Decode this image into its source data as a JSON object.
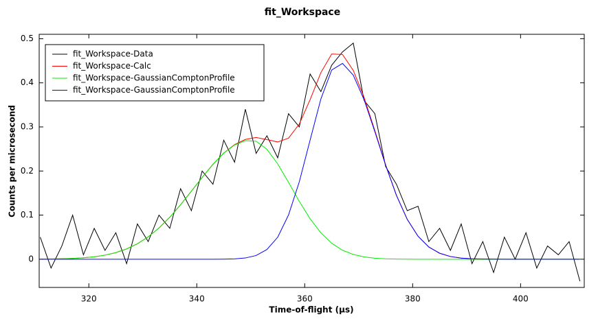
{
  "chart_data": {
    "type": "line",
    "title": "fit_Workspace",
    "x_label": "Time-of-flight (μs)",
    "y_label": "Counts per microsecond",
    "x": [
      311,
      313,
      315,
      317,
      319,
      321,
      323,
      325,
      327,
      329,
      331,
      333,
      335,
      337,
      339,
      341,
      343,
      345,
      347,
      349,
      351,
      353,
      355,
      357,
      359,
      361,
      363,
      365,
      367,
      369,
      371,
      373,
      375,
      377,
      379,
      381,
      383,
      385,
      387,
      389,
      391,
      393,
      395,
      397,
      399,
      401,
      403,
      405,
      407,
      409,
      411
    ],
    "series": [
      {
        "name": "fit_Workspace-Data",
        "color": "#000000",
        "values": [
          0.05,
          -0.02,
          0.03,
          0.1,
          0.01,
          0.07,
          0.02,
          0.06,
          -0.01,
          0.08,
          0.04,
          0.1,
          0.07,
          0.16,
          0.11,
          0.2,
          0.17,
          0.27,
          0.22,
          0.34,
          0.24,
          0.28,
          0.23,
          0.33,
          0.3,
          0.42,
          0.38,
          0.44,
          0.47,
          0.49,
          0.36,
          0.33,
          0.21,
          0.17,
          0.11,
          0.12,
          0.04,
          0.07,
          0.02,
          0.08,
          -0.01,
          0.04,
          -0.03,
          0.05,
          0.0,
          0.06,
          -0.02,
          0.03,
          0.01,
          0.04,
          -0.05
        ]
      },
      {
        "name": "fit_Workspace-Calc",
        "color": "#ff0000",
        "values": [
          0.0002,
          0.0005,
          0.0009,
          0.0018,
          0.0032,
          0.0055,
          0.0092,
          0.015,
          0.0233,
          0.0351,
          0.0508,
          0.0708,
          0.0952,
          0.1235,
          0.1542,
          0.1856,
          0.2152,
          0.2407,
          0.2598,
          0.2716,
          0.276,
          0.2712,
          0.2659,
          0.2746,
          0.3066,
          0.3617,
          0.4232,
          0.4652,
          0.4644,
          0.4282,
          0.3671,
          0.2916,
          0.2139,
          0.1449,
          0.0904,
          0.0521,
          0.0276,
          0.0136,
          0.0061,
          0.0025,
          0.001,
          0.0004,
          0.0001,
          0,
          0,
          0,
          0,
          0,
          0,
          0,
          0
        ]
      },
      {
        "name": "fit_Workspace-GaussianComptonProfile",
        "color": "#00ee00",
        "values": [
          0.0002,
          0.0005,
          0.0009,
          0.0018,
          0.0032,
          0.0055,
          0.0092,
          0.015,
          0.0233,
          0.0351,
          0.0508,
          0.0708,
          0.0952,
          0.1235,
          0.1542,
          0.1856,
          0.2152,
          0.2405,
          0.259,
          0.2688,
          0.2676,
          0.2492,
          0.216,
          0.1743,
          0.131,
          0.0917,
          0.0597,
          0.0362,
          0.0204,
          0.0108,
          0.0053,
          0.0024,
          0.001,
          0.0004,
          0.0001,
          0,
          0,
          0,
          0,
          0,
          0,
          0,
          0,
          0,
          0,
          0,
          0,
          0,
          0,
          0,
          0
        ]
      },
      {
        "name": "fit_Workspace-GaussianComptonProfile",
        "color": "#0000ff",
        "values": [
          0,
          0,
          0,
          0,
          0,
          0,
          0,
          0,
          0,
          0,
          0,
          0,
          0,
          0,
          0,
          0,
          0,
          0.0002,
          0.0008,
          0.0028,
          0.0084,
          0.022,
          0.0499,
          0.1003,
          0.1756,
          0.27,
          0.3635,
          0.429,
          0.444,
          0.4174,
          0.3618,
          0.2892,
          0.2129,
          0.1445,
          0.0903,
          0.0521,
          0.0276,
          0.0136,
          0.0061,
          0.0025,
          0.001,
          0.0004,
          0.0001,
          0,
          0,
          0,
          0,
          0,
          0,
          0,
          0
        ]
      }
    ],
    "xlim": [
      310.8,
      411.8
    ],
    "ylim": [
      -0.064,
      0.51
    ],
    "xticks": [
      320,
      340,
      360,
      380,
      400
    ],
    "yticks": [
      0,
      0.1,
      0.2,
      0.3,
      0.4,
      0.5
    ],
    "legend": "top-left"
  }
}
